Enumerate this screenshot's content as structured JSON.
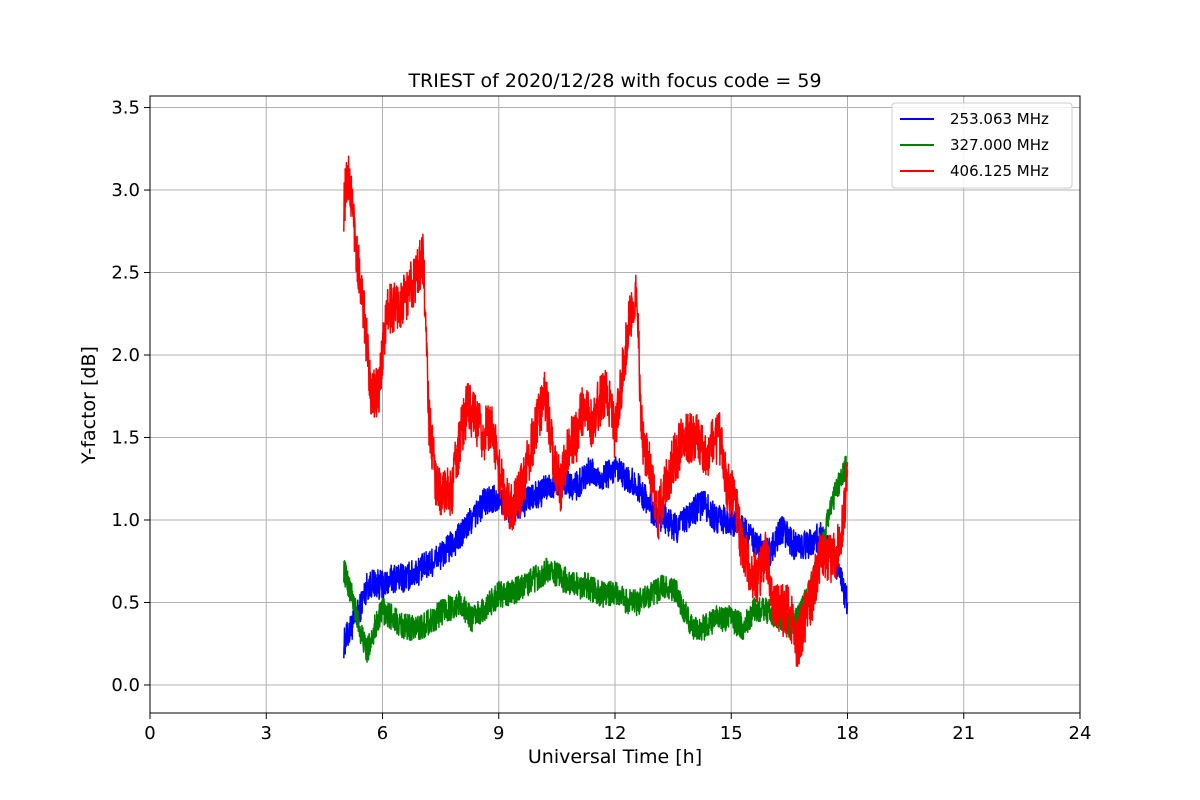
{
  "chart_data": {
    "type": "line",
    "title": "TRIEST of 2020/12/28 with focus code = 59",
    "xlabel": "Universal Time [h]",
    "ylabel": "Y-factor [dB]",
    "xlim": [
      0,
      24
    ],
    "ylim": [
      -0.17,
      3.57
    ],
    "x_ticks": [
      0,
      3,
      6,
      9,
      12,
      15,
      18,
      21,
      24
    ],
    "x_tick_labels": [
      "0",
      "3",
      "6",
      "9",
      "12",
      "15",
      "18",
      "21",
      "24"
    ],
    "y_ticks": [
      0.0,
      0.5,
      1.0,
      1.5,
      2.0,
      2.5,
      3.0,
      3.5
    ],
    "y_tick_labels": [
      "0.0",
      "0.5",
      "1.0",
      "1.5",
      "2.0",
      "2.5",
      "3.0",
      "3.5"
    ],
    "grid": true,
    "legend_position": "top-right",
    "series": [
      {
        "name": "253.063 MHz",
        "color": "#0000ff",
        "x": [
          5.0,
          5.2,
          5.4,
          5.6,
          5.8,
          6.0,
          6.3,
          6.6,
          7.0,
          7.3,
          7.6,
          8.0,
          8.3,
          8.6,
          9.0,
          9.3,
          9.6,
          10.0,
          10.3,
          10.6,
          11.0,
          11.3,
          11.6,
          12.0,
          12.3,
          12.6,
          13.0,
          13.3,
          13.6,
          14.0,
          14.3,
          14.6,
          15.0,
          15.3,
          15.6,
          16.0,
          16.3,
          16.6,
          17.0,
          17.3,
          17.6,
          18.0
        ],
        "y": [
          0.25,
          0.35,
          0.45,
          0.6,
          0.62,
          0.6,
          0.65,
          0.65,
          0.7,
          0.75,
          0.8,
          0.9,
          1.0,
          1.1,
          1.15,
          1.05,
          1.1,
          1.15,
          1.2,
          1.25,
          1.2,
          1.3,
          1.25,
          1.3,
          1.25,
          1.2,
          1.05,
          1.0,
          0.95,
          1.05,
          1.1,
          1.0,
          1.0,
          0.95,
          0.85,
          0.8,
          0.95,
          0.85,
          0.85,
          0.9,
          0.8,
          0.5
        ]
      },
      {
        "name": "327.000 MHz",
        "color": "#008000",
        "x": [
          5.0,
          5.2,
          5.4,
          5.6,
          5.8,
          6.0,
          6.3,
          6.6,
          7.0,
          7.3,
          7.6,
          8.0,
          8.3,
          8.6,
          9.0,
          9.3,
          9.6,
          10.0,
          10.3,
          10.6,
          11.0,
          11.3,
          11.6,
          12.0,
          12.3,
          12.6,
          13.0,
          13.3,
          13.6,
          14.0,
          14.3,
          14.6,
          15.0,
          15.3,
          15.6,
          16.0,
          16.3,
          16.6,
          17.0,
          17.3,
          17.6,
          18.0
        ],
        "y": [
          0.7,
          0.55,
          0.35,
          0.2,
          0.35,
          0.45,
          0.4,
          0.35,
          0.35,
          0.4,
          0.45,
          0.5,
          0.4,
          0.45,
          0.55,
          0.55,
          0.6,
          0.65,
          0.7,
          0.65,
          0.6,
          0.6,
          0.55,
          0.55,
          0.5,
          0.5,
          0.55,
          0.6,
          0.55,
          0.35,
          0.35,
          0.4,
          0.4,
          0.35,
          0.45,
          0.45,
          0.4,
          0.35,
          0.55,
          0.8,
          1.1,
          1.35
        ]
      },
      {
        "name": "406.125 MHz",
        "color": "#ff0000",
        "x": [
          5.0,
          5.1,
          5.2,
          5.35,
          5.5,
          5.7,
          5.9,
          6.1,
          6.3,
          6.5,
          6.7,
          6.9,
          7.05,
          7.2,
          7.4,
          7.6,
          7.8,
          8.0,
          8.2,
          8.4,
          8.6,
          8.8,
          9.0,
          9.2,
          9.4,
          9.6,
          9.8,
          10.0,
          10.2,
          10.4,
          10.6,
          10.8,
          11.0,
          11.2,
          11.4,
          11.6,
          11.8,
          12.0,
          12.2,
          12.4,
          12.55,
          12.7,
          12.9,
          13.1,
          13.3,
          13.5,
          13.7,
          13.9,
          14.1,
          14.3,
          14.5,
          14.7,
          14.9,
          15.1,
          15.3,
          15.5,
          15.7,
          15.9,
          16.1,
          16.3,
          16.5,
          16.7,
          16.9,
          17.1,
          17.3,
          17.5,
          17.7,
          17.9,
          18.0
        ],
        "y": [
          2.9,
          3.1,
          2.95,
          2.6,
          2.3,
          1.8,
          1.75,
          2.25,
          2.3,
          2.3,
          2.4,
          2.5,
          2.6,
          1.6,
          1.2,
          1.15,
          1.2,
          1.5,
          1.7,
          1.6,
          1.5,
          1.6,
          1.3,
          1.1,
          1.1,
          1.2,
          1.4,
          1.6,
          1.75,
          1.4,
          1.2,
          1.45,
          1.5,
          1.7,
          1.6,
          1.7,
          1.8,
          1.5,
          1.9,
          2.25,
          2.4,
          1.5,
          1.3,
          1.0,
          1.2,
          1.35,
          1.45,
          1.5,
          1.5,
          1.4,
          1.45,
          1.5,
          1.2,
          1.1,
          0.8,
          0.7,
          0.65,
          0.8,
          0.5,
          0.45,
          0.45,
          0.25,
          0.4,
          0.55,
          0.8,
          0.75,
          0.8,
          1.0,
          1.3
        ]
      }
    ]
  }
}
